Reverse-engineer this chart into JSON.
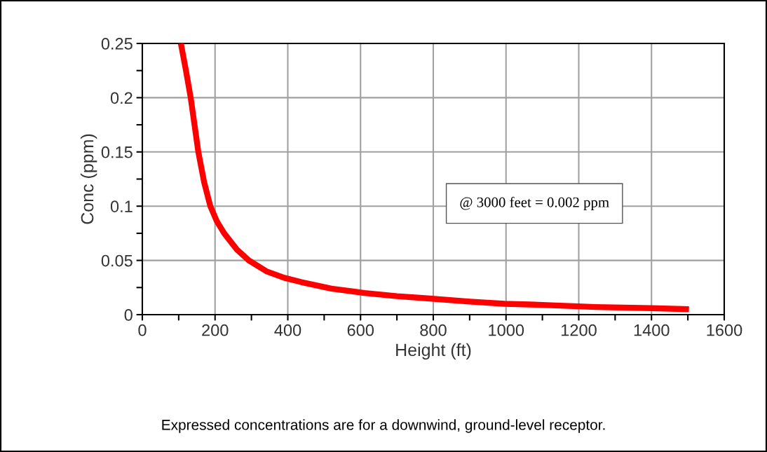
{
  "chart_data": {
    "type": "line",
    "xlabel": "Height (ft)",
    "ylabel": "Conc (ppm)",
    "x": [
      106,
      120,
      133,
      154,
      170,
      187,
      205,
      225,
      260,
      293,
      341,
      390,
      437,
      520,
      611,
      700,
      784,
      900,
      996,
      1100,
      1247,
      1400,
      1503
    ],
    "series": [
      {
        "color": "#ff0000",
        "values": [
          0.25,
          0.225,
          0.2,
          0.15,
          0.122,
          0.1,
          0.086,
          0.075,
          0.06,
          0.05,
          0.04,
          0.034,
          0.03,
          0.024,
          0.02,
          0.017,
          0.015,
          0.012,
          0.01,
          0.009,
          0.007,
          0.006,
          0.005
        ]
      }
    ],
    "xlim": [
      0,
      1600
    ],
    "ylim": [
      0,
      0.25
    ],
    "xticks": [
      0,
      {
        "value": 100,
        "label": null
      },
      200,
      {
        "value": 300,
        "label": null
      },
      400,
      {
        "value": 500,
        "label": null
      },
      600,
      {
        "value": 700,
        "label": null
      },
      800,
      {
        "value": 900,
        "label": null
      },
      1000,
      {
        "value": 1100,
        "label": null
      },
      1200,
      {
        "value": 1300,
        "label": null
      },
      1400,
      {
        "value": 1500,
        "label": null
      },
      1600
    ],
    "yticks": [
      0,
      {
        "value": 0.025,
        "label": null
      },
      0.05,
      {
        "value": 0.075,
        "label": null
      },
      0.1,
      {
        "value": 0.125,
        "label": null
      },
      0.15,
      {
        "value": 0.175,
        "label": null
      },
      0.2,
      {
        "value": 0.225,
        "label": null
      },
      0.25
    ],
    "grid": true,
    "marker": "none",
    "line_style": "solid",
    "annotations": [
      "@ 3000 feet = 0.002 ppm",
      "Expressed concentrations are for a downwind, ground-level receptor."
    ]
  }
}
